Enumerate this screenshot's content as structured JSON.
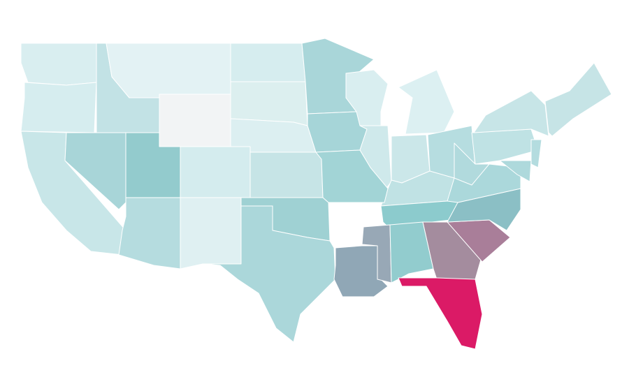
{
  "map": {
    "stroke": "#ffffff",
    "regions": [
      {
        "color": "#d9eef0"
      },
      {
        "color": "#d6edef"
      },
      {
        "color": "#c8e6e8"
      },
      {
        "color": "#a8d5d8"
      },
      {
        "color": "#c2e2e5"
      },
      {
        "color": "#e3f2f4"
      },
      {
        "color": "#f2f4f5"
      },
      {
        "color": "#93cbcd"
      },
      {
        "color": "#b5dcdf"
      },
      {
        "color": "#d4ecee"
      },
      {
        "color": "#dff0f2"
      },
      {
        "color": "#d6edef"
      },
      {
        "color": "#dcefef"
      },
      {
        "color": "#dceff1"
      },
      {
        "color": "#c6e4e6"
      },
      {
        "color": "#9fd1d3"
      },
      {
        "color": "#abd7da"
      },
      {
        "color": "#a9d6d9"
      },
      {
        "color": "#a6d5d8"
      },
      {
        "color": "#90a7b6"
      },
      {
        "color": "#d9eef0"
      },
      {
        "color": "#cfe9eb"
      },
      {
        "color": "#dcf0f2"
      },
      {
        "color": "#cbe7e9"
      },
      {
        "color": "#b6dde0"
      },
      {
        "color": "#c0e2e4"
      },
      {
        "color": "#a2d4d6"
      },
      {
        "color": "#8ccbcd"
      },
      {
        "color": "#98a8b6"
      },
      {
        "color": "#92ccce"
      },
      {
        "color": "#a48c9e"
      },
      {
        "color": "#db1a66"
      },
      {
        "color": "#a97e99"
      },
      {
        "color": "#8bbfc5"
      },
      {
        "color": "#abd8db"
      },
      {
        "color": "#b1dadd"
      },
      {
        "color": "#bfe2e4"
      },
      {
        "color": "#c7e5e7"
      },
      {
        "color": "#b4dcdf"
      },
      {
        "color": "#aed9dc"
      },
      {
        "color": "#c6e4e6"
      }
    ]
  }
}
